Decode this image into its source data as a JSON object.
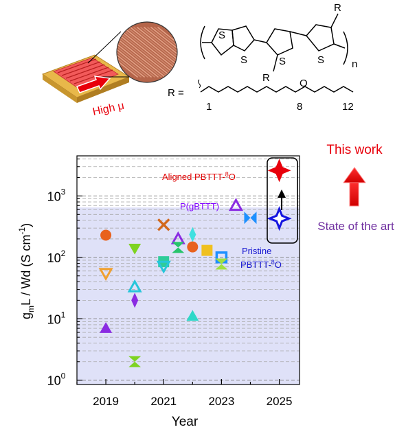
{
  "header": {
    "device_label": "High μ",
    "r_eq": "R =",
    "polymer_n": "n",
    "atom_S": "S",
    "atom_O": "O",
    "atom_R": "R",
    "chain_numbers": [
      "1",
      "8",
      "12"
    ]
  },
  "legend": {
    "this_work": "This work",
    "state_of_art": "State of the art"
  },
  "colors": {
    "accent_red": "#e8000b",
    "state_purple": "#7030a0",
    "band_fill": "#dfe1f8",
    "label_red": "#e00000",
    "label_purple": "#8000ff",
    "label_blue": "#1515d0"
  },
  "chart_data": {
    "type": "scatter",
    "xlabel": "Year",
    "ylabel": "g_mL / Wd (S cm^-1)",
    "ylabel_parts": {
      "g": "g",
      "sub": "m",
      "mid": "L / Wd (S cm",
      "sup": "-1",
      "end": ")"
    },
    "xlim": [
      2018.0,
      2025.7
    ],
    "ylim": [
      0.85,
      4500
    ],
    "yscale": "log",
    "xticks": [
      2019,
      2021,
      2023,
      2025
    ],
    "xtick_labels": [
      "2019",
      "2021",
      "2023",
      "2025"
    ],
    "ytick_labels": [
      {
        "value": 1,
        "base": "10",
        "exp": "0"
      },
      {
        "value": 10,
        "base": "10",
        "exp": "1"
      },
      {
        "value": 100,
        "base": "10",
        "exp": "2"
      },
      {
        "value": 1000,
        "base": "10",
        "exp": "3"
      }
    ],
    "grid": "minor dashed",
    "shaded_band_ymax": 650,
    "annotations": [
      {
        "name": "aligned",
        "text_main": "Aligned PBTTT-",
        "text_sup": "8",
        "text_end": "O",
        "color": "#e00000"
      },
      {
        "name": "pgbttt",
        "text_main": "P(gBTTT)",
        "color": "#8000ff"
      },
      {
        "name": "pristine",
        "line1": "Pristine",
        "line2_main": "PBTTT-",
        "line2_sup": "8",
        "line2_end": "O",
        "color": "#1515d0"
      }
    ],
    "points": [
      {
        "x": 2019.0,
        "y": 230,
        "marker": "circle",
        "color": "#e8621e"
      },
      {
        "x": 2019.0,
        "y": 55,
        "marker": "tri_down_open",
        "color": "#f0a030"
      },
      {
        "x": 2019.0,
        "y": 7,
        "marker": "tri_up",
        "color": "#8a2be2"
      },
      {
        "x": 2020.0,
        "y": 140,
        "marker": "tri_down",
        "color": "#7ed321"
      },
      {
        "x": 2020.0,
        "y": 33,
        "marker": "tri_up_open",
        "color": "#26c6da"
      },
      {
        "x": 2020.0,
        "y": 20,
        "marker": "diamond_thin",
        "color": "#8a2be2"
      },
      {
        "x": 2020.0,
        "y": 2,
        "marker": "hourglass",
        "color": "#7ed321"
      },
      {
        "x": 2021.0,
        "y": 340,
        "marker": "x",
        "color": "#d2691e"
      },
      {
        "x": 2021.0,
        "y": 85,
        "marker": "square",
        "color": "#2ecc9a"
      },
      {
        "x": 2021.0,
        "y": 72,
        "marker": "tri_down_open",
        "color": "#26c6da"
      },
      {
        "x": 2021.5,
        "y": 200,
        "marker": "tri_up_open",
        "color": "#8a2be2"
      },
      {
        "x": 2021.5,
        "y": 145,
        "marker": "hourglass",
        "color": "#27c46b"
      },
      {
        "x": 2022.0,
        "y": 235,
        "marker": "diamond_thin",
        "color": "#3ee0e0"
      },
      {
        "x": 2022.0,
        "y": 148,
        "marker": "circle",
        "color": "#e8621e"
      },
      {
        "x": 2022.0,
        "y": 11,
        "marker": "tri_up",
        "color": "#2ed8c8"
      },
      {
        "x": 2022.5,
        "y": 130,
        "marker": "square",
        "color": "#f0c020"
      },
      {
        "x": 2023.0,
        "y": 100,
        "marker": "square_open",
        "color": "#1e90ff"
      },
      {
        "x": 2023.0,
        "y": 78,
        "marker": "hourglass",
        "color": "#a0e040"
      },
      {
        "x": 2023.5,
        "y": 700,
        "marker": "tri_up_open",
        "color": "#8a2be2"
      },
      {
        "x": 2024.0,
        "y": 440,
        "marker": "bowtie",
        "color": "#1e90ff"
      },
      {
        "x": 2025.0,
        "y": 430,
        "marker": "star4_open",
        "color": "#1515e0"
      },
      {
        "x": 2025.0,
        "y": 2600,
        "marker": "star4",
        "color": "#e8000b"
      }
    ]
  }
}
